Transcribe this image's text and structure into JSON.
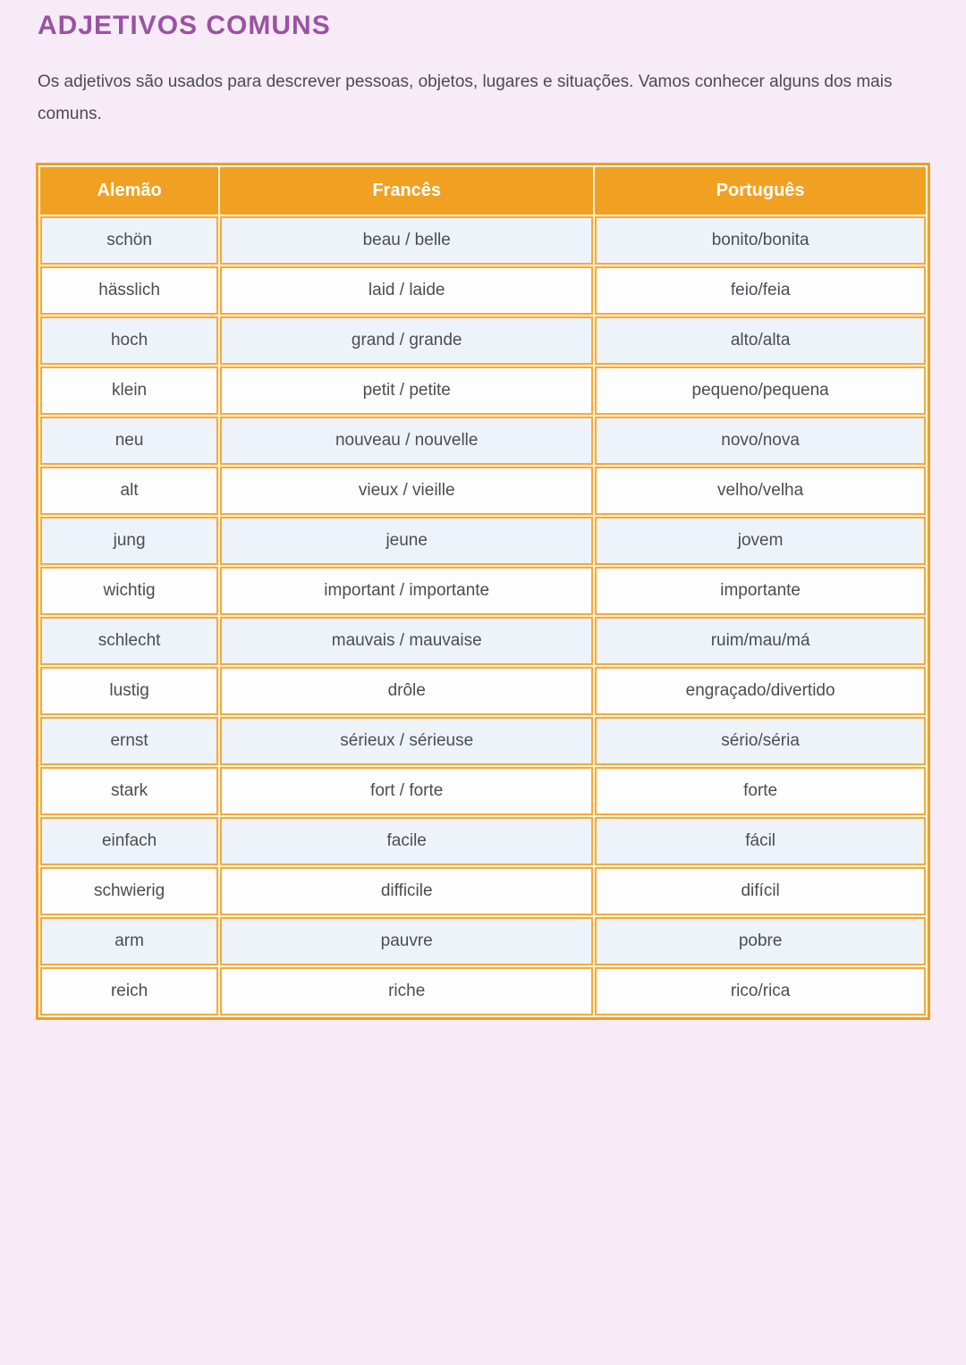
{
  "page": {
    "title": "ADJETIVOS COMUNS",
    "intro": "Os adjetivos são usados para descrever pessoas, objetos, lugares e situações. Vamos conhecer alguns dos mais comuns."
  },
  "table": {
    "headers": [
      "Alemão",
      "Francês",
      "Português"
    ],
    "rows": [
      [
        "schön",
        "beau / belle",
        "bonito/bonita"
      ],
      [
        "hässlich",
        "laid / laide",
        "feio/feia"
      ],
      [
        "hoch",
        "grand / grande",
        "alto/alta"
      ],
      [
        "klein",
        "petit / petite",
        "pequeno/pequena"
      ],
      [
        "neu",
        "nouveau / nouvelle",
        "novo/nova"
      ],
      [
        "alt",
        "vieux / vieille",
        "velho/velha"
      ],
      [
        "jung",
        "jeune",
        "jovem"
      ],
      [
        "wichtig",
        "important / importante",
        "importante"
      ],
      [
        "schlecht",
        "mauvais / mauvaise",
        "ruim/mau/má"
      ],
      [
        "lustig",
        "drôle",
        "engraçado/divertido"
      ],
      [
        "ernst",
        "sérieux / sérieuse",
        "sério/séria"
      ],
      [
        "stark",
        "fort / forte",
        "forte"
      ],
      [
        "einfach",
        "facile",
        "fácil"
      ],
      [
        "schwierig",
        "difficile",
        "difícil"
      ],
      [
        "arm",
        "pauvre",
        "pobre"
      ],
      [
        "reich",
        "riche",
        "rico/rica"
      ]
    ]
  },
  "colors": {
    "page_background": "#f6ebf7",
    "title": "#9b52a3",
    "body_text": "#4b4b50",
    "table_header_background": "#f1a122",
    "table_header_text": "#ffffff",
    "table_border": "#ef9f25",
    "row_alternate_background": "#edf3f8",
    "row_background": "#fdfdfd"
  }
}
